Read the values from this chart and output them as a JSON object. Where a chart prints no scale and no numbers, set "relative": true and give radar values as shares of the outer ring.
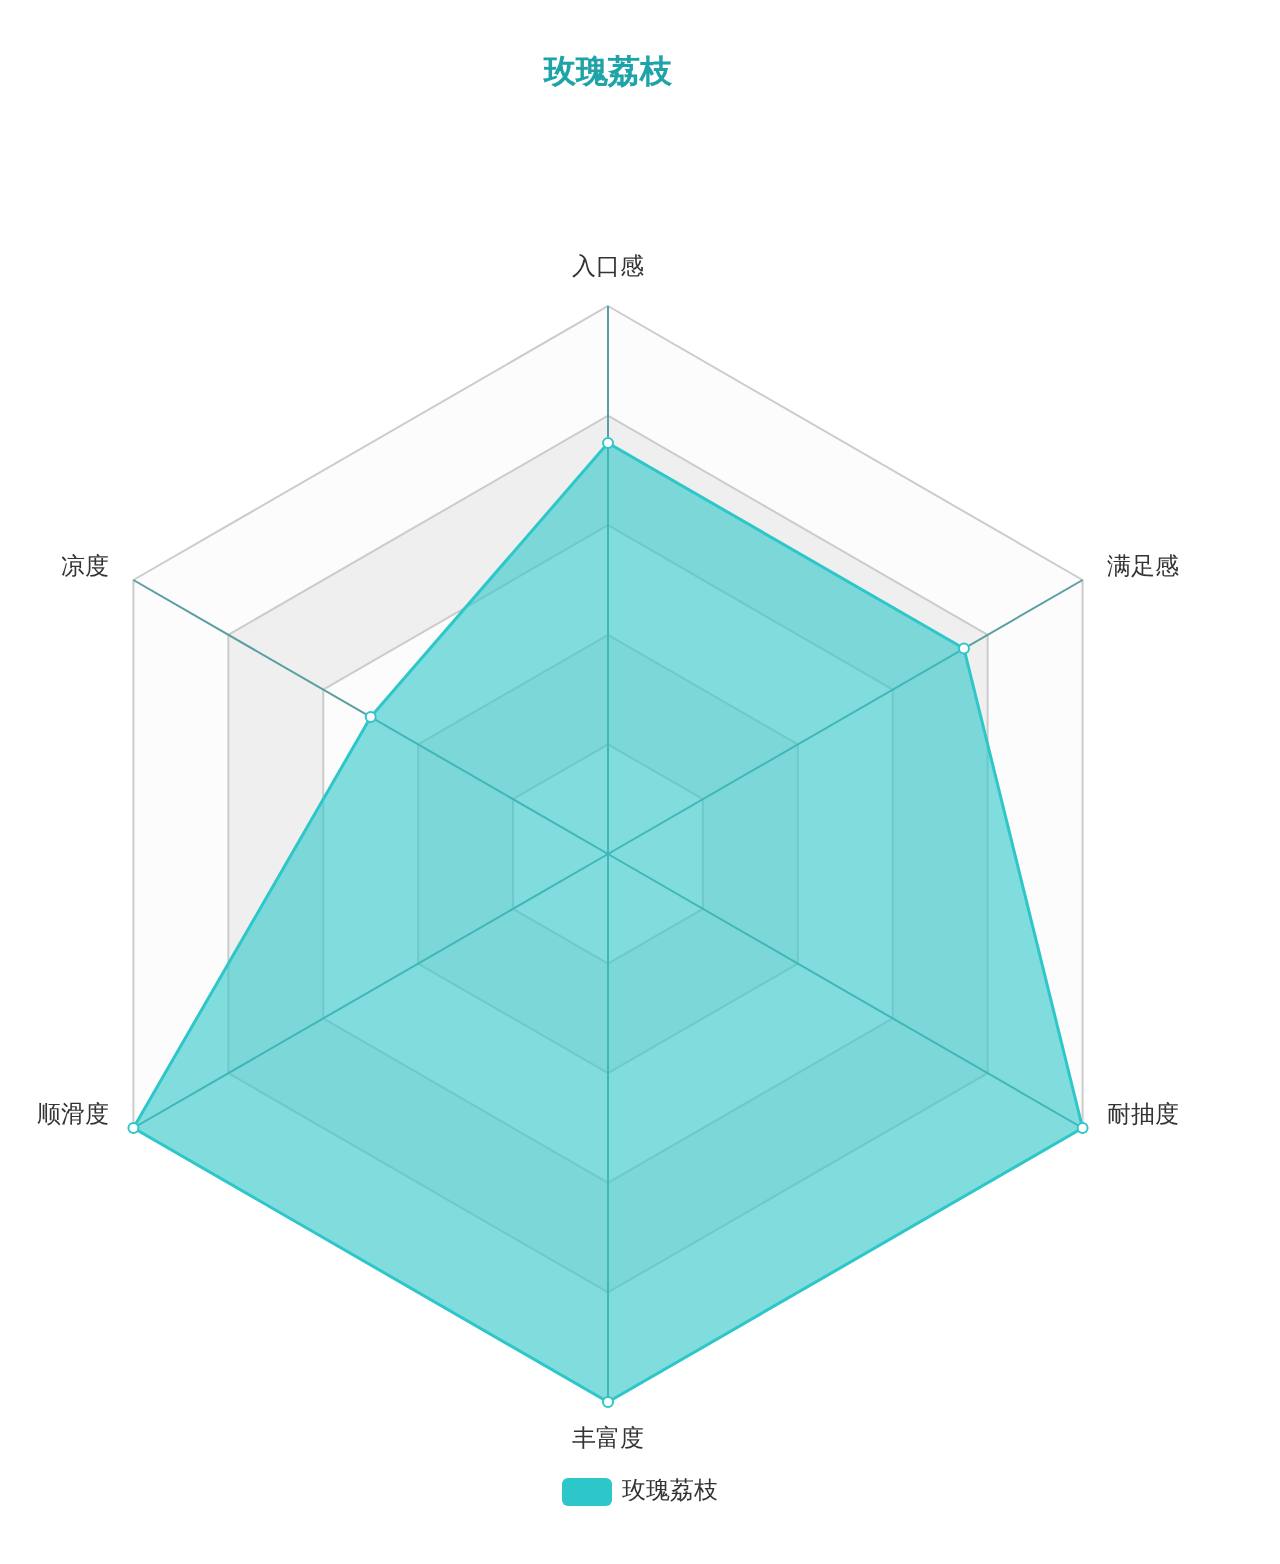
{
  "chart_data": {
    "type": "radar",
    "title": "玫瑰荔枝",
    "categories": [
      "入口感",
      "满足感",
      "耐抽度",
      "丰富度",
      "顺滑度",
      "凉度"
    ],
    "relative": true,
    "series": [
      {
        "name": "玫瑰荔枝",
        "color": "#2ec7c9",
        "values": [
          0.75,
          0.75,
          1,
          1,
          1,
          0.5
        ]
      }
    ],
    "legend": "bottom",
    "marker": "circle"
  }
}
